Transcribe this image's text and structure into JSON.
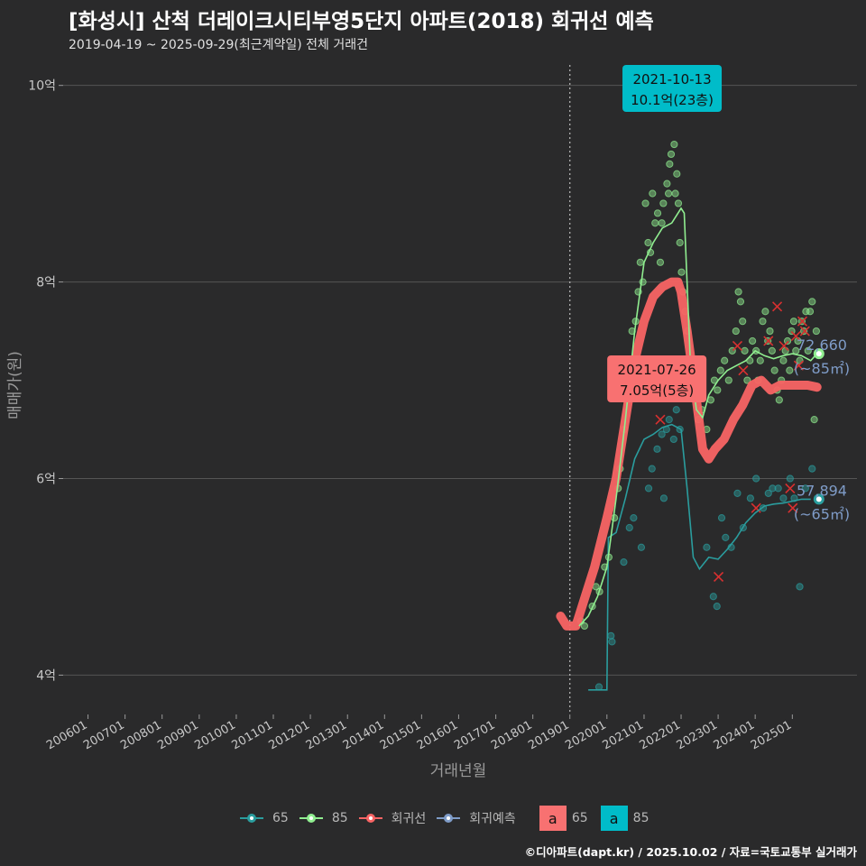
{
  "header": {
    "title": "[화성시] 산척 더레이크시티부영5단지 아파트(2018) 회귀선 예측",
    "subtitle": "2019-04-19 ~ 2025-09-29(최근계약일) 전체 거래건"
  },
  "footer": {
    "credit": "©디아파트(dapt.kr) / 2025.10.02 / 자료=국토교통부 실거래가"
  },
  "legend": {
    "items": [
      {
        "label": "65",
        "color": "#2a9d9e"
      },
      {
        "label": "85",
        "color": "#90ee90"
      },
      {
        "label": "회귀선",
        "color": "#f86464"
      },
      {
        "label": "회귀예측",
        "color": "#7f9cc8"
      }
    ],
    "boxes": [
      {
        "glyph": "a",
        "label": "65",
        "color": "#f87171"
      },
      {
        "glyph": "a",
        "label": "85",
        "color": "#00bcc9"
      }
    ]
  },
  "colors": {
    "background": "#2a2a2b",
    "grid": "#555555",
    "s65": "#2a9d9e",
    "s85": "#90ee90",
    "regression": "#f86464",
    "prediction": "#7f9cc8",
    "cancel_x": "#d93030"
  },
  "chart_data": {
    "type": "line",
    "xlabel": "거래년월",
    "ylabel": "매매가(원)",
    "x_range": [
      "2005-05-01",
      "2026-09-30"
    ],
    "ylim": [
      3.6,
      10.3
    ],
    "y_ticks": [
      {
        "value": 4,
        "label": "4억"
      },
      {
        "value": 6,
        "label": "6억"
      },
      {
        "value": 8,
        "label": "8억"
      },
      {
        "value": 10,
        "label": "10억"
      }
    ],
    "x_ticks": [
      "200601",
      "200701",
      "200801",
      "200901",
      "201001",
      "201101",
      "201201",
      "201301",
      "201401",
      "201501",
      "201601",
      "201701",
      "201801",
      "201901",
      "202001",
      "202101",
      "202201",
      "202301",
      "202401",
      "202501"
    ],
    "grid": true,
    "reference_line": "2019-01-01",
    "series": [
      {
        "name": "65",
        "values": [
          [
            "2019-07-01",
            3.85
          ],
          [
            "2019-10-01",
            3.85
          ],
          [
            "2020-01-01",
            3.85
          ],
          [
            "2020-01-15",
            5.4
          ],
          [
            "2020-04-01",
            5.45
          ],
          [
            "2020-07-01",
            5.8
          ],
          [
            "2020-10-01",
            6.2
          ],
          [
            "2021-01-01",
            6.4
          ],
          [
            "2021-04-01",
            6.45
          ],
          [
            "2021-07-01",
            6.52
          ],
          [
            "2021-10-01",
            6.55
          ],
          [
            "2022-01-01",
            6.5
          ],
          [
            "2022-03-01",
            5.9
          ],
          [
            "2022-05-01",
            5.2
          ],
          [
            "2022-07-01",
            5.08
          ],
          [
            "2022-10-01",
            5.2
          ],
          [
            "2023-01-01",
            5.18
          ],
          [
            "2023-04-01",
            5.28
          ],
          [
            "2023-07-01",
            5.4
          ],
          [
            "2023-10-01",
            5.55
          ],
          [
            "2024-01-01",
            5.65
          ],
          [
            "2024-04-01",
            5.72
          ],
          [
            "2024-07-01",
            5.74
          ],
          [
            "2024-10-01",
            5.75
          ],
          [
            "2025-01-01",
            5.77
          ],
          [
            "2025-04-01",
            5.79
          ],
          [
            "2025-07-01",
            5.79
          ]
        ]
      },
      {
        "name": "85",
        "values": [
          [
            "2019-04-01",
            4.5
          ],
          [
            "2019-07-01",
            4.6
          ],
          [
            "2019-10-01",
            4.8
          ],
          [
            "2020-01-01",
            5.1
          ],
          [
            "2020-04-01",
            5.8
          ],
          [
            "2020-07-01",
            6.6
          ],
          [
            "2020-10-01",
            7.5
          ],
          [
            "2021-01-01",
            8.2
          ],
          [
            "2021-04-01",
            8.4
          ],
          [
            "2021-07-01",
            8.55
          ],
          [
            "2021-10-01",
            8.6
          ],
          [
            "2022-01-01",
            8.75
          ],
          [
            "2022-02-01",
            8.7
          ],
          [
            "2022-04-01",
            7.2
          ],
          [
            "2022-06-01",
            6.7
          ],
          [
            "2022-08-01",
            6.62
          ],
          [
            "2022-10-01",
            6.85
          ],
          [
            "2023-01-01",
            7.0
          ],
          [
            "2023-04-01",
            7.1
          ],
          [
            "2023-07-01",
            7.15
          ],
          [
            "2023-10-01",
            7.2
          ],
          [
            "2024-01-01",
            7.3
          ],
          [
            "2024-04-01",
            7.25
          ],
          [
            "2024-07-01",
            7.22
          ],
          [
            "2024-10-01",
            7.25
          ],
          [
            "2025-01-01",
            7.27
          ],
          [
            "2025-04-01",
            7.25
          ],
          [
            "2025-07-01",
            7.2
          ],
          [
            "2025-09-01",
            7.27
          ]
        ]
      },
      {
        "name": "회귀선",
        "values": [
          [
            "2018-10-01",
            4.6
          ],
          [
            "2018-12-01",
            4.5
          ],
          [
            "2019-03-01",
            4.5
          ],
          [
            "2019-06-01",
            4.8
          ],
          [
            "2019-09-01",
            5.1
          ],
          [
            "2020-01-01",
            5.6
          ],
          [
            "2020-04-01",
            6.0
          ],
          [
            "2020-07-01",
            6.6
          ],
          [
            "2020-10-01",
            7.2
          ],
          [
            "2021-01-01",
            7.6
          ],
          [
            "2021-04-01",
            7.85
          ],
          [
            "2021-07-01",
            7.95
          ],
          [
            "2021-10-01",
            8.0
          ],
          [
            "2021-12-01",
            8.0
          ],
          [
            "2022-01-01",
            7.9
          ],
          [
            "2022-03-01",
            7.5
          ],
          [
            "2022-06-01",
            6.8
          ],
          [
            "2022-08-01",
            6.3
          ],
          [
            "2022-10-01",
            6.2
          ],
          [
            "2022-12-01",
            6.3
          ],
          [
            "2023-03-01",
            6.4
          ],
          [
            "2023-06-01",
            6.6
          ],
          [
            "2023-09-01",
            6.75
          ],
          [
            "2023-12-01",
            6.95
          ],
          [
            "2024-03-01",
            7.0
          ],
          [
            "2024-06-01",
            6.9
          ],
          [
            "2024-09-01",
            6.95
          ],
          [
            "2024-12-01",
            6.95
          ],
          [
            "2025-03-01",
            6.95
          ],
          [
            "2025-06-01",
            6.95
          ],
          [
            "2025-09-01",
            6.93
          ]
        ]
      },
      {
        "name": "회귀예측",
        "values": []
      }
    ],
    "scatter_65": [
      [
        "2019-10-15",
        3.88
      ],
      [
        "2020-02-10",
        4.4
      ],
      [
        "2020-02-20",
        4.34
      ],
      [
        "2020-06-15",
        5.15
      ],
      [
        "2020-08-10",
        5.5
      ],
      [
        "2020-09-20",
        5.6
      ],
      [
        "2020-12-05",
        5.3
      ],
      [
        "2021-02-15",
        5.9
      ],
      [
        "2021-03-20",
        6.1
      ],
      [
        "2021-05-10",
        6.3
      ],
      [
        "2021-06-25",
        6.45
      ],
      [
        "2021-07-15",
        5.8
      ],
      [
        "2021-08-10",
        6.5
      ],
      [
        "2021-09-05",
        6.6
      ],
      [
        "2021-10-20",
        6.4
      ],
      [
        "2021-11-15",
        6.7
      ],
      [
        "2021-12-20",
        6.5
      ],
      [
        "2022-09-10",
        5.3
      ],
      [
        "2022-11-15",
        4.8
      ],
      [
        "2022-12-20",
        4.7
      ],
      [
        "2023-02-05",
        5.6
      ],
      [
        "2023-03-15",
        5.4
      ],
      [
        "2023-05-10",
        5.3
      ],
      [
        "2023-07-10",
        5.85
      ],
      [
        "2023-09-05",
        5.5
      ],
      [
        "2023-11-15",
        5.8
      ],
      [
        "2024-01-10",
        6.0
      ],
      [
        "2024-03-20",
        5.7
      ],
      [
        "2024-05-10",
        5.85
      ],
      [
        "2024-06-20",
        5.9
      ],
      [
        "2024-08-15",
        5.9
      ],
      [
        "2024-10-05",
        5.8
      ],
      [
        "2024-12-10",
        6.0
      ],
      [
        "2025-01-20",
        5.8
      ],
      [
        "2025-03-15",
        4.9
      ],
      [
        "2025-05-10",
        5.9
      ],
      [
        "2025-07-15",
        6.1
      ]
    ],
    "scatter_85": [
      [
        "2019-04-20",
        4.55
      ],
      [
        "2019-05-25",
        4.5
      ],
      [
        "2019-08-10",
        4.7
      ],
      [
        "2019-09-15",
        4.9
      ],
      [
        "2019-10-20",
        4.85
      ],
      [
        "2019-12-10",
        5.1
      ],
      [
        "2020-01-20",
        5.2
      ],
      [
        "2020-03-15",
        5.6
      ],
      [
        "2020-04-20",
        5.9
      ],
      [
        "2020-05-10",
        6.1
      ],
      [
        "2020-06-20",
        6.5
      ],
      [
        "2020-07-15",
        6.8
      ],
      [
        "2020-08-10",
        7.2
      ],
      [
        "2020-09-05",
        7.5
      ],
      [
        "2020-10-10",
        7.6
      ],
      [
        "2020-11-05",
        7.9
      ],
      [
        "2020-11-25",
        8.2
      ],
      [
        "2020-12-20",
        8.0
      ],
      [
        "2021-01-15",
        8.8
      ],
      [
        "2021-02-10",
        8.4
      ],
      [
        "2021-03-05",
        8.3
      ],
      [
        "2021-03-25",
        8.9
      ],
      [
        "2021-04-20",
        8.6
      ],
      [
        "2021-05-15",
        8.7
      ],
      [
        "2021-06-10",
        8.2
      ],
      [
        "2021-06-25",
        8.6
      ],
      [
        "2021-07-10",
        8.8
      ],
      [
        "2021-07-26",
        7.05
      ],
      [
        "2021-08-15",
        9.0
      ],
      [
        "2021-08-30",
        8.9
      ],
      [
        "2021-09-10",
        9.2
      ],
      [
        "2021-09-25",
        9.3
      ],
      [
        "2021-10-13",
        10.1
      ],
      [
        "2021-10-25",
        9.4
      ],
      [
        "2021-11-05",
        8.9
      ],
      [
        "2021-11-20",
        9.1
      ],
      [
        "2021-12-05",
        8.8
      ],
      [
        "2021-12-20",
        8.4
      ],
      [
        "2022-01-05",
        8.1
      ],
      [
        "2022-01-20",
        7.9
      ],
      [
        "2022-02-10",
        7.7
      ],
      [
        "2022-03-05",
        7.5
      ],
      [
        "2022-04-10",
        7.2
      ],
      [
        "2022-05-15",
        6.9
      ],
      [
        "2022-06-20",
        6.6
      ],
      [
        "2022-07-25",
        6.7
      ],
      [
        "2022-09-10",
        6.5
      ],
      [
        "2022-10-20",
        6.8
      ],
      [
        "2022-11-25",
        7.0
      ],
      [
        "2022-12-25",
        6.9
      ],
      [
        "2023-01-25",
        7.1
      ],
      [
        "2023-03-05",
        7.2
      ],
      [
        "2023-04-15",
        7.0
      ],
      [
        "2023-05-20",
        7.3
      ],
      [
        "2023-06-25",
        7.5
      ],
      [
        "2023-07-20",
        7.9
      ],
      [
        "2023-08-10",
        7.8
      ],
      [
        "2023-08-30",
        7.6
      ],
      [
        "2023-09-20",
        7.3
      ],
      [
        "2023-10-15",
        7.0
      ],
      [
        "2023-11-10",
        7.2
      ],
      [
        "2023-12-05",
        7.4
      ],
      [
        "2024-01-10",
        7.3
      ],
      [
        "2024-01-30",
        7.0
      ],
      [
        "2024-02-20",
        7.2
      ],
      [
        "2024-03-15",
        7.6
      ],
      [
        "2024-04-10",
        7.7
      ],
      [
        "2024-05-05",
        7.4
      ],
      [
        "2024-05-25",
        7.5
      ],
      [
        "2024-06-15",
        7.3
      ],
      [
        "2024-07-10",
        7.1
      ],
      [
        "2024-08-05",
        6.9
      ],
      [
        "2024-08-25",
        6.8
      ],
      [
        "2024-09-15",
        7.0
      ],
      [
        "2024-10-05",
        7.2
      ],
      [
        "2024-10-25",
        7.3
      ],
      [
        "2024-11-15",
        7.4
      ],
      [
        "2024-12-05",
        7.1
      ],
      [
        "2024-12-25",
        7.5
      ],
      [
        "2025-01-15",
        7.6
      ],
      [
        "2025-02-05",
        7.3
      ],
      [
        "2025-02-25",
        7.4
      ],
      [
        "2025-03-15",
        7.2
      ],
      [
        "2025-04-05",
        7.6
      ],
      [
        "2025-04-25",
        7.5
      ],
      [
        "2025-05-15",
        7.7
      ],
      [
        "2025-06-05",
        7.3
      ],
      [
        "2025-06-25",
        7.7
      ],
      [
        "2025-07-15",
        7.8
      ],
      [
        "2025-08-05",
        6.6
      ],
      [
        "2025-08-25",
        7.5
      ]
    ],
    "cancelled": [
      [
        "2021-06-10",
        6.6
      ],
      [
        "2023-01-05",
        5.0
      ],
      [
        "2023-07-10",
        7.35
      ],
      [
        "2023-09-05",
        7.1
      ],
      [
        "2024-01-10",
        5.7
      ],
      [
        "2024-05-10",
        7.4
      ],
      [
        "2024-08-05",
        7.75
      ],
      [
        "2024-10-10",
        7.35
      ],
      [
        "2024-12-10",
        5.9
      ],
      [
        "2025-01-05",
        5.7
      ],
      [
        "2025-02-05",
        7.45
      ],
      [
        "2025-03-05",
        7.15
      ],
      [
        "2025-04-10",
        7.6
      ],
      [
        "2025-05-05",
        7.5
      ]
    ],
    "annotations": [
      {
        "date": "2021-10-13",
        "value": 10.1,
        "line1": "2021-10-13",
        "line2": "10.1억(23층)",
        "style": "teal"
      },
      {
        "date": "2021-07-26",
        "value": 7.05,
        "line1": "2021-07-26",
        "line2": "7.05억(5층)",
        "style": "red"
      }
    ],
    "end_labels": [
      {
        "date": "2025-09-20",
        "value": 7.27,
        "line1": "72,660",
        "line2": "(~85㎡)",
        "series": "85"
      },
      {
        "date": "2025-09-20",
        "value": 5.79,
        "line1": "57,894",
        "line2": "(~65㎡)",
        "series": "65"
      }
    ]
  }
}
